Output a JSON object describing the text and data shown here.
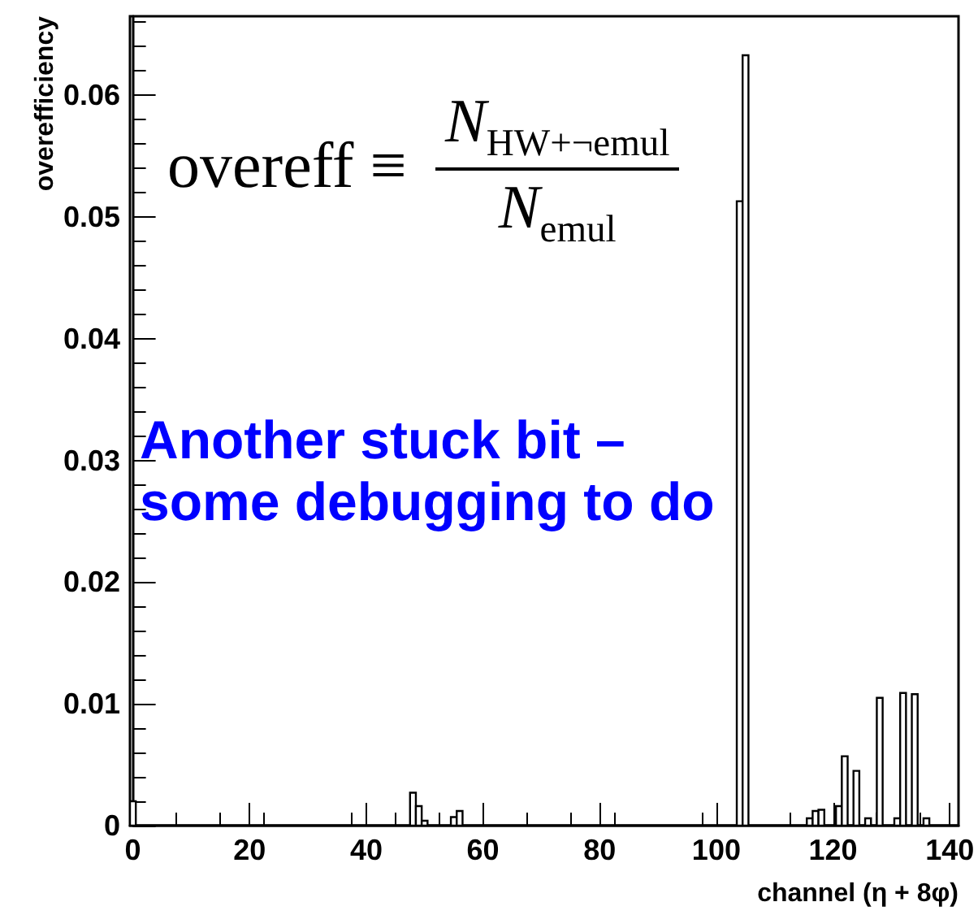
{
  "chart_data": {
    "type": "histogram",
    "xlabel": "channel (η + 8φ)",
    "ylabel": "overefficiency",
    "annotations": [
      "overeff ≡",
      "N$_{HW+¬emul}$",
      "N$_{emul}$",
      "Another stuck bit – some debugging to do"
    ],
    "bins": [
      -0.5,
      0.5,
      1.5,
      2.5,
      3.5,
      4.5,
      5.5,
      6.5,
      7.5,
      8.5,
      9.5,
      10.5,
      11.5,
      12.5,
      13.5,
      14.5,
      15.5,
      16.5,
      17.5,
      18.5,
      19.5,
      20.5,
      21.5,
      22.5,
      23.5,
      24.5,
      25.5,
      26.5,
      27.5,
      28.5,
      29.5,
      30.5,
      31.5,
      32.5,
      33.5,
      34.5,
      35.5,
      36.5,
      37.5,
      38.5,
      39.5,
      40.5,
      41.5,
      42.5,
      43.5,
      44.5,
      45.5,
      46.5,
      47.5,
      48.5,
      49.5,
      50.5,
      51.5,
      52.5,
      53.5,
      54.5,
      55.5,
      56.5,
      57.5,
      58.5,
      59.5,
      60.5,
      61.5,
      62.5,
      63.5,
      64.5,
      65.5,
      66.5,
      67.5,
      68.5,
      69.5,
      70.5,
      71.5,
      72.5,
      73.5,
      74.5,
      75.5,
      76.5,
      77.5,
      78.5,
      79.5,
      80.5,
      81.5,
      82.5,
      83.5,
      84.5,
      85.5,
      86.5,
      87.5,
      88.5,
      89.5,
      90.5,
      91.5,
      92.5,
      93.5,
      94.5,
      95.5,
      96.5,
      97.5,
      98.5,
      99.5,
      100.5,
      101.5,
      102.5,
      103.5,
      104.5,
      105.5,
      106.5,
      107.5,
      108.5,
      109.5,
      110.5,
      111.5,
      112.5,
      113.5,
      114.5,
      115.5,
      116.5,
      117.5,
      118.5,
      119.5,
      120.5,
      121.5,
      122.5,
      123.5,
      124.5,
      125.5,
      126.5,
      127.5,
      128.5,
      129.5,
      130.5,
      131.5,
      132.5,
      133.5,
      134.5,
      135.5,
      136.5,
      137.5,
      138.5,
      139.5,
      140.5,
      141.5
    ],
    "values": [
      0.002,
      0,
      0,
      0,
      0,
      0,
      0,
      0,
      0,
      0,
      0,
      0,
      0,
      0,
      0,
      0,
      0,
      0,
      0,
      0,
      0,
      0,
      0,
      0,
      0,
      0,
      0,
      0,
      0,
      0,
      0,
      0,
      0,
      0,
      0,
      0,
      0,
      0,
      0,
      0,
      0,
      0,
      0,
      0,
      0,
      0,
      0,
      0,
      0.0027,
      0.0016,
      0.0004,
      0,
      0,
      0,
      0,
      0.0007,
      0.0012,
      0,
      0,
      0,
      0,
      0,
      0,
      0,
      0,
      0,
      0,
      0,
      0,
      0,
      0,
      0,
      0,
      0,
      0,
      0,
      0,
      0,
      0,
      0,
      0,
      0,
      0,
      0,
      0,
      0,
      0,
      0,
      0,
      0,
      0,
      0,
      0,
      0,
      0,
      0,
      0,
      0,
      0,
      0,
      0,
      0,
      0,
      0,
      0.0513,
      0.0633,
      0,
      0,
      0,
      0,
      0,
      0,
      0,
      0,
      0,
      0,
      0.0006,
      0.0012,
      0.0013,
      0,
      0,
      0.0016,
      0.0057,
      0,
      0.0045,
      0,
      0.0006,
      0,
      0.0105,
      0,
      0,
      0.0006,
      0.0109,
      0,
      0.0108,
      0,
      0.0006,
      0,
      0,
      0,
      0,
      0
    ],
    "color": "#000000",
    "xlim": [
      -0.5,
      141.5
    ],
    "xticks": [
      0,
      20,
      40,
      60,
      80,
      100,
      120,
      140
    ],
    "ylim": [
      0,
      0.0665
    ],
    "yticks": [
      0,
      0.01,
      0.02,
      0.03,
      0.04,
      0.05,
      0.06
    ],
    "grid": false
  }
}
